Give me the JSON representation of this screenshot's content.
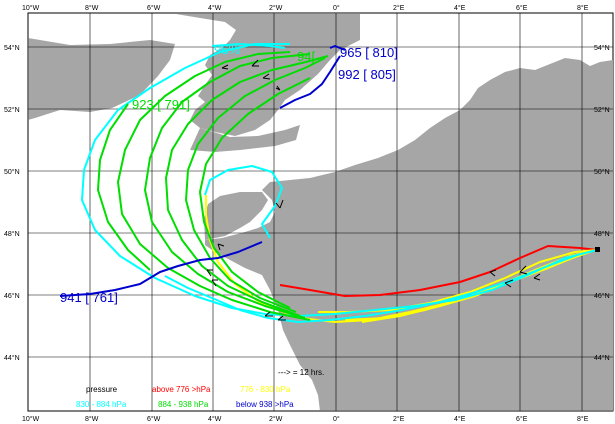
{
  "map": {
    "lon_ticks": [
      "10°W",
      "8°W",
      "6°W",
      "4°W",
      "2°W",
      "0°",
      "2°E",
      "4°E",
      "6°E",
      "8°E"
    ],
    "lat_ticks": [
      "54°N",
      "52°N",
      "50°N",
      "48°N",
      "46°N",
      "44°N"
    ],
    "colors": {
      "sea": "#ffffff",
      "land": "#a6a6a6",
      "grid": "#000000",
      "above": "#ff0000",
      "mid_high": "#ffff00",
      "mid_low": "#00ffff",
      "low": "#00dd00",
      "below": "#0000cc"
    },
    "trajectory_labels": [
      {
        "text": "941 [ 761]",
        "color": "below"
      },
      {
        "text": "992 [ 805]",
        "color": "below"
      },
      {
        "text": "965 [ 810]",
        "color": "below"
      },
      {
        "text": "923 [ 791]",
        "color": "low"
      },
      {
        "text": "94[",
        "color": "low"
      },
      {
        "text": "96%",
        "color": "mid_low"
      }
    ],
    "time_note": "---> = 12 hrs.",
    "legend": {
      "title": "pressure",
      "above": "above 776 >hPa",
      "band1": "776 - 830 hPa",
      "band2": "830 - 884 hPa",
      "band3": "884 - 938 hPa",
      "below": "below 938 >hPa"
    }
  }
}
